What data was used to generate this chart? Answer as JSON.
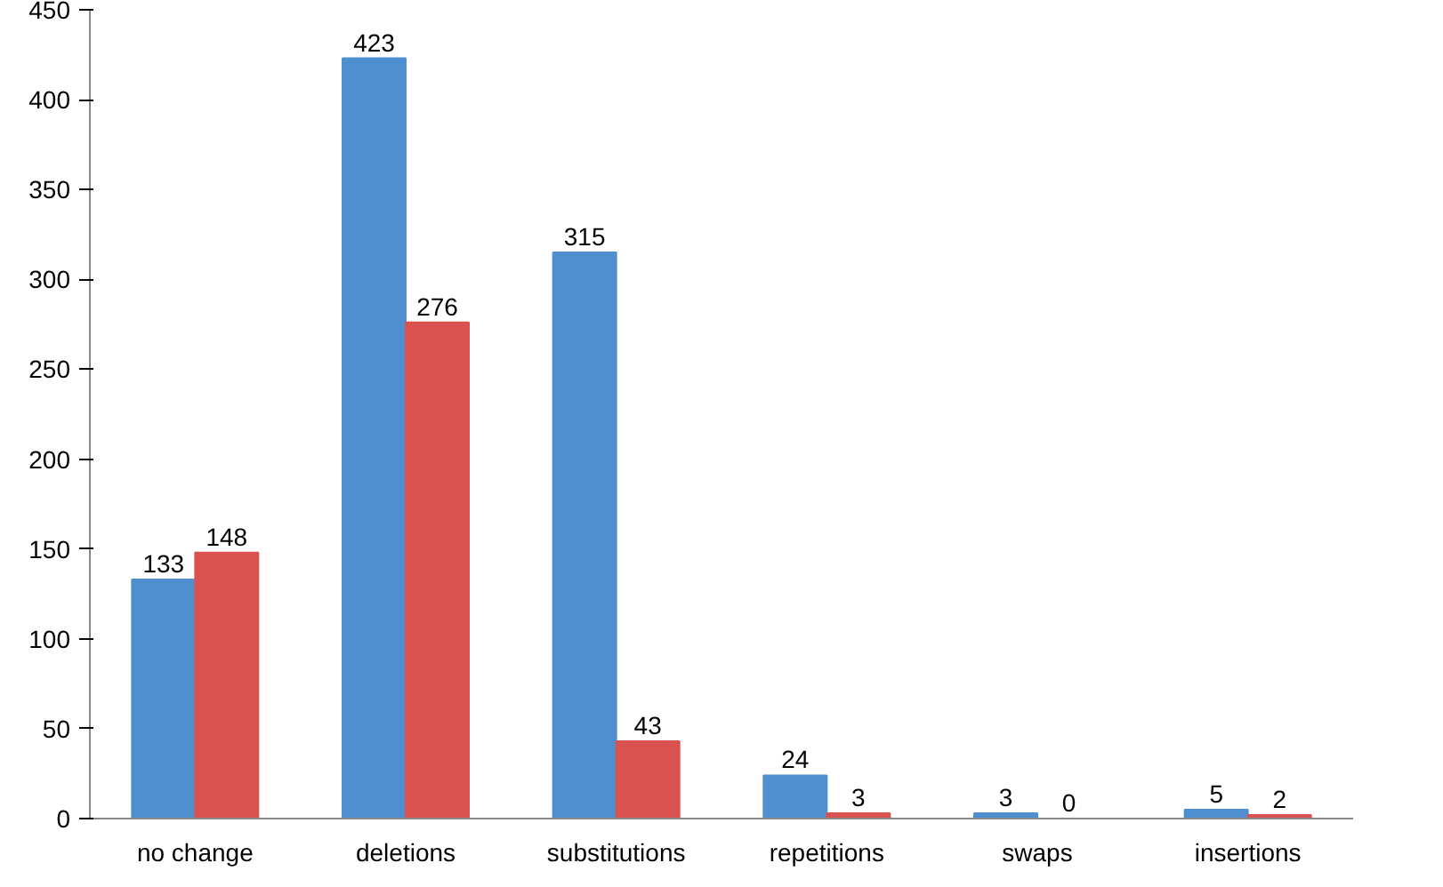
{
  "chart_data": {
    "type": "bar",
    "categories": [
      "no change",
      "deletions",
      "substitutions",
      "repetitions",
      "swaps",
      "insertions"
    ],
    "series": [
      {
        "color": "#4f8fd0",
        "values": [
          133,
          423,
          315,
          24,
          3,
          5
        ]
      },
      {
        "color": "#d9524f",
        "values": [
          148,
          276,
          43,
          3,
          0,
          2
        ]
      }
    ],
    "ylim": [
      0,
      450
    ],
    "yticks": [
      0,
      50,
      100,
      150,
      200,
      250,
      300,
      350,
      400,
      450
    ],
    "data_labels": true,
    "grid": false
  }
}
